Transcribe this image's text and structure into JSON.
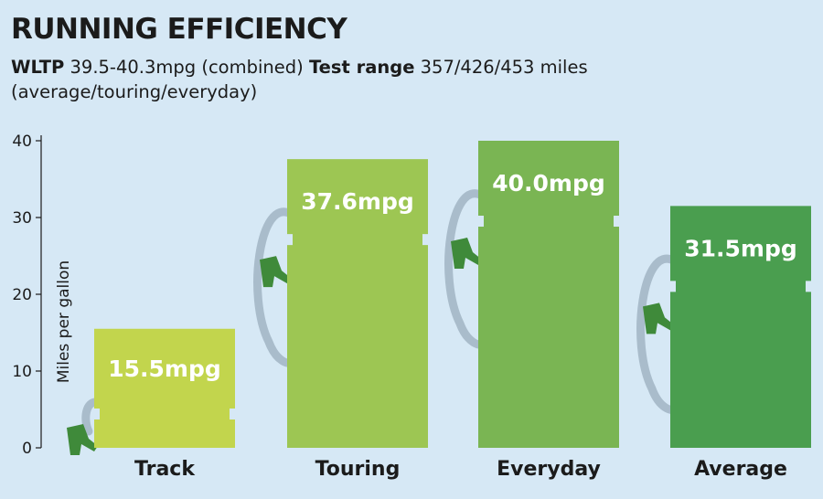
{
  "title": "RUNNING EFFICIENCY",
  "subtitle": {
    "wltp_label": "WLTP",
    "wltp_value": "39.5-40.3mpg (combined)",
    "range_label": "Test range",
    "range_value": "357/426/453 miles (average/touring/everyday)"
  },
  "chart_data": {
    "type": "bar",
    "categories": [
      "Track",
      "Touring",
      "Everyday",
      "Average"
    ],
    "values": [
      15.5,
      37.6,
      40.0,
      31.5
    ],
    "value_labels": [
      "15.5mpg",
      "37.6mpg",
      "40.0mpg",
      "31.5mpg"
    ],
    "ylabel": "Miles per gallon",
    "ylim": [
      0,
      40
    ],
    "yticks": [
      0,
      10,
      20,
      30,
      40
    ],
    "bar_colors": [
      "#c2d54d",
      "#9dc653",
      "#7ab553",
      "#4a9e4f"
    ],
    "decoration_color": "#a9bccb",
    "decoration_dark_color": "#3f8a3a",
    "grid": false
  }
}
